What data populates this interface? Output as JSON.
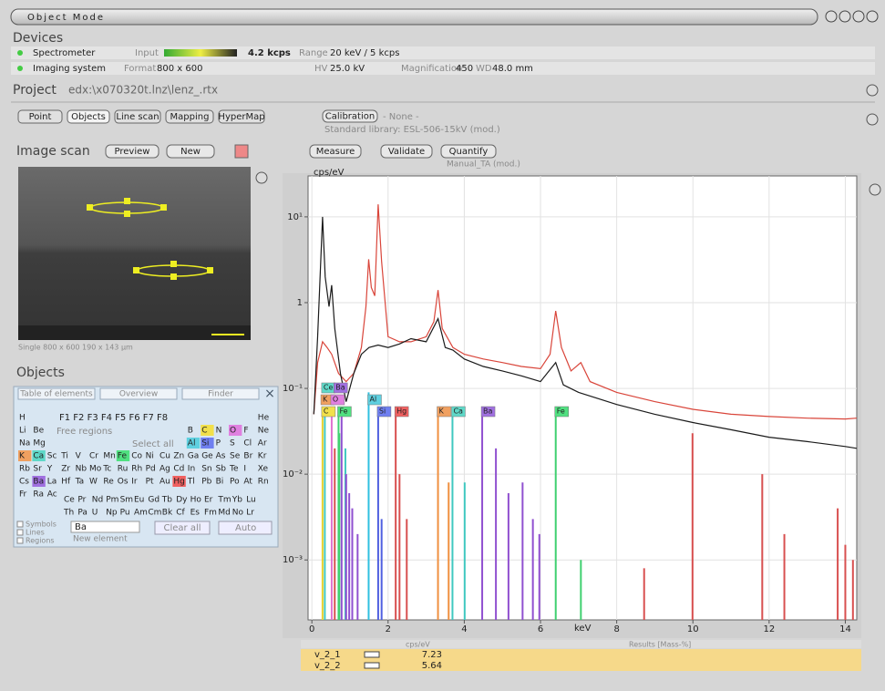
{
  "header": {
    "mode": "Object Mode"
  },
  "devices": {
    "title": "Devices",
    "spectrometer": {
      "name": "Spectrometer",
      "input_label": "Input",
      "rate": "4.2 kcps",
      "range_label": "Range",
      "range": "20 keV / 5 kcps"
    },
    "imaging": {
      "name": "Imaging system",
      "format_label": "Format",
      "format": "800 x 600",
      "hv_label": "HV",
      "hv": "25.0 kV",
      "mag_label": "Magnification",
      "mag": "450",
      "wd_label": "WD",
      "wd": "48.0 mm"
    }
  },
  "project": {
    "label": "Project",
    "path": "edx:\\x070320t.lnz\\lenz_.rtx"
  },
  "toolbar": {
    "tabs": [
      "Point",
      "Objects",
      "Line scan",
      "Mapping",
      "HyperMap"
    ],
    "calibration": "Calibration",
    "calibration_value": "- None -",
    "library": "Standard library: ESL-506-15kV (mod.)"
  },
  "image_scan": {
    "title": "Image scan",
    "buttons": [
      "Preview",
      "New"
    ],
    "caption": "Single  800 x 600  190 x 143 µm"
  },
  "objects": {
    "title": "Objects",
    "tabs": [
      "Table of elements",
      "Overview",
      "Finder"
    ],
    "fkeys": "F1 F2 F3 F4 F5 F6 F7 F8",
    "free_regions": "Free regions",
    "select_all": "Select all",
    "rows": [
      [
        "H",
        null,
        null,
        null,
        null,
        null,
        null,
        null,
        null,
        null,
        null,
        null,
        null,
        null,
        null,
        null,
        null,
        "He"
      ],
      [
        "Li",
        "Be",
        null,
        null,
        null,
        null,
        null,
        null,
        null,
        null,
        null,
        null,
        "B",
        "C",
        "N",
        "O",
        "F",
        "Ne"
      ],
      [
        "Na",
        "Mg",
        null,
        null,
        null,
        null,
        null,
        null,
        null,
        null,
        null,
        null,
        "Al",
        "Si",
        "P",
        "S",
        "Cl",
        "Ar"
      ],
      [
        "K",
        "Ca",
        "Sc",
        "Ti",
        "V",
        "Cr",
        "Mn",
        "Fe",
        "Co",
        "Ni",
        "Cu",
        "Zn",
        "Ga",
        "Ge",
        "As",
        "Se",
        "Br",
        "Kr"
      ],
      [
        "Rb",
        "Sr",
        "Y",
        "Zr",
        "Nb",
        "Mo",
        "Tc",
        "Ru",
        "Rh",
        "Pd",
        "Ag",
        "Cd",
        "In",
        "Sn",
        "Sb",
        "Te",
        "I",
        "Xe"
      ],
      [
        "Cs",
        "Ba",
        "La",
        "Hf",
        "Ta",
        "W",
        "Re",
        "Os",
        "Ir",
        "Pt",
        "Au",
        "Hg",
        "Tl",
        "Pb",
        "Bi",
        "Po",
        "At",
        "Rn"
      ],
      [
        "Fr",
        "Ra",
        "Ac",
        null,
        null,
        null,
        null,
        null,
        null,
        null,
        null,
        null,
        null,
        null,
        null,
        null,
        null,
        null
      ]
    ],
    "lanthanides": [
      "Ce",
      "Pr",
      "Nd",
      "Pm",
      "Sm",
      "Eu",
      "Gd",
      "Tb",
      "Dy",
      "Ho",
      "Er",
      "Tm",
      "Yb",
      "Lu"
    ],
    "actinides": [
      "Th",
      "Pa",
      "U",
      "Np",
      "Pu",
      "Am",
      "Cm",
      "Bk",
      "Cf",
      "Es",
      "Fm",
      "Md",
      "No",
      "Lr"
    ],
    "highlights": {
      "C": "#f2e04a",
      "O": "#e080e0",
      "Al": "#5fd0e0",
      "Si": "#6f7ff0",
      "K": "#f0a060",
      "Ca": "#5fd8c8",
      "Fe": "#50e080",
      "Ba": "#a070e0",
      "Hg": "#f06060"
    },
    "options": [
      "Symbols",
      "Lines",
      "Regions"
    ],
    "input": "Ba",
    "input_hint": "New element",
    "clear": "Clear all",
    "auto": "Auto"
  },
  "spectrum_toolbar": {
    "buttons": [
      "Measure",
      "Validate",
      "Quantify"
    ],
    "method": "Manual_TA (mod.)"
  },
  "chart_data": {
    "type": "line",
    "y_label": "cps/eV",
    "x_label": "keV",
    "log_y": true,
    "grid": true,
    "xlim": [
      -0.1,
      14.3
    ],
    "xticks": [
      0,
      2,
      4,
      6,
      8,
      10,
      12,
      14
    ],
    "ylim": [
      0.0002,
      30
    ],
    "yticks": [
      {
        "value": 10,
        "label": "10¹"
      },
      1,
      {
        "value": 0.1,
        "label": "10⁻¹"
      },
      {
        "value": 0.01,
        "label": "10⁻²"
      },
      {
        "value": 0.001,
        "label": "10⁻³"
      }
    ],
    "series": [
      {
        "name": "v_2_1",
        "color": "#d9453a",
        "x": [
          0.05,
          0.15,
          0.28,
          0.4,
          0.52,
          0.7,
          0.9,
          1.1,
          1.3,
          1.42,
          1.49,
          1.56,
          1.65,
          1.74,
          1.83,
          2.0,
          2.3,
          2.6,
          3.0,
          3.2,
          3.31,
          3.42,
          3.7,
          4.0,
          4.5,
          5.0,
          5.5,
          6.0,
          6.25,
          6.4,
          6.55,
          6.8,
          7.06,
          7.3,
          8,
          9,
          10,
          11,
          12,
          13,
          14,
          14.3
        ],
        "values": [
          0.05,
          0.2,
          0.35,
          0.3,
          0.25,
          0.15,
          0.12,
          0.15,
          0.3,
          0.9,
          3.2,
          1.5,
          1.2,
          14,
          3,
          0.4,
          0.35,
          0.35,
          0.4,
          0.6,
          1.4,
          0.5,
          0.3,
          0.25,
          0.22,
          0.2,
          0.18,
          0.17,
          0.25,
          0.8,
          0.3,
          0.16,
          0.2,
          0.12,
          0.09,
          0.07,
          0.057,
          0.05,
          0.047,
          0.045,
          0.044,
          0.045
        ]
      },
      {
        "name": "v_2_2",
        "color": "#1a1a1a",
        "x": [
          0.05,
          0.15,
          0.28,
          0.35,
          0.45,
          0.52,
          0.6,
          0.75,
          0.9,
          1.1,
          1.3,
          1.5,
          1.74,
          2.0,
          2.3,
          2.6,
          3.0,
          3.31,
          3.5,
          3.7,
          4.0,
          4.5,
          5.0,
          5.5,
          6.0,
          6.4,
          6.6,
          7.0,
          8,
          9,
          10,
          11,
          12,
          13,
          14,
          14.3
        ],
        "values": [
          0.05,
          0.4,
          10,
          2,
          0.9,
          1.6,
          0.5,
          0.15,
          0.07,
          0.15,
          0.25,
          0.3,
          0.32,
          0.3,
          0.33,
          0.38,
          0.35,
          0.65,
          0.3,
          0.28,
          0.22,
          0.18,
          0.16,
          0.14,
          0.12,
          0.2,
          0.11,
          0.09,
          0.065,
          0.05,
          0.04,
          0.033,
          0.027,
          0.024,
          0.021,
          0.02
        ]
      }
    ],
    "markers": [
      {
        "label": "Ce",
        "keV": 0.28,
        "row": 0,
        "color": "#5fd8c8"
      },
      {
        "label": "Ba",
        "keV": 0.6,
        "row": 0,
        "color": "#a070e0"
      },
      {
        "label": "K",
        "keV": 0.26,
        "row": 1,
        "color": "#f0a060"
      },
      {
        "label": "O",
        "keV": 0.52,
        "row": 1,
        "color": "#e080e0"
      },
      {
        "label": "Al",
        "keV": 1.49,
        "row": 1,
        "color": "#5fd0e0"
      },
      {
        "label": "C",
        "keV": 0.28,
        "row": 2,
        "color": "#f2e04a"
      },
      {
        "label": "Fe",
        "keV": 0.7,
        "row": 2,
        "color": "#50e080"
      },
      {
        "label": "Si",
        "keV": 1.74,
        "row": 2,
        "color": "#6f7ff0"
      },
      {
        "label": "Hg",
        "keV": 2.2,
        "row": 2,
        "color": "#f06060"
      },
      {
        "label": "K",
        "keV": 3.31,
        "row": 2,
        "color": "#f0a060"
      },
      {
        "label": "Ca",
        "keV": 3.69,
        "row": 2,
        "color": "#5fd8c8"
      },
      {
        "label": "Ba",
        "keV": 4.47,
        "row": 2,
        "color": "#a070e0"
      },
      {
        "label": "Fe",
        "keV": 6.4,
        "row": 2,
        "color": "#50e080"
      }
    ],
    "line_groups": [
      {
        "color": "#e8d030",
        "lines": [
          [
            0.28,
            0.05
          ]
        ]
      },
      {
        "color": "#40c8c0",
        "lines": [
          [
            0.34,
            0.05
          ],
          [
            0.88,
            0.02
          ],
          [
            3.69,
            0.05
          ],
          [
            4.01,
            0.008
          ]
        ]
      },
      {
        "color": "#40d070",
        "lines": [
          [
            0.7,
            0.05
          ],
          [
            0.72,
            0.03
          ],
          [
            6.4,
            0.05
          ],
          [
            7.06,
            0.001
          ]
        ]
      },
      {
        "color": "#9050d0",
        "lines": [
          [
            0.78,
            0.05
          ],
          [
            0.9,
            0.01
          ],
          [
            0.98,
            0.006
          ],
          [
            1.06,
            0.004
          ],
          [
            1.2,
            0.002
          ],
          [
            4.47,
            0.05
          ],
          [
            4.83,
            0.02
          ],
          [
            5.16,
            0.006
          ],
          [
            5.53,
            0.008
          ],
          [
            5.8,
            0.003
          ],
          [
            5.97,
            0.002
          ]
        ]
      },
      {
        "color": "#e070d0",
        "lines": [
          [
            0.52,
            0.05
          ]
        ]
      },
      {
        "color": "#d85050",
        "lines": [
          [
            0.6,
            0.02
          ],
          [
            2.2,
            0.05
          ],
          [
            2.3,
            0.01
          ],
          [
            2.49,
            0.003
          ],
          [
            8.72,
            0.0008
          ],
          [
            9.99,
            0.03
          ],
          [
            11.82,
            0.01
          ],
          [
            12.4,
            0.002
          ],
          [
            13.8,
            0.004
          ],
          [
            14.0,
            0.0015
          ],
          [
            14.2,
            0.001
          ]
        ]
      },
      {
        "color": "#30c0e0",
        "lines": [
          [
            1.49,
            0.09
          ]
        ]
      },
      {
        "color": "#5060e0",
        "lines": [
          [
            1.74,
            0.05
          ],
          [
            1.83,
            0.003
          ]
        ]
      },
      {
        "color": "#f09040",
        "lines": [
          [
            3.31,
            0.05
          ],
          [
            3.59,
            0.008
          ]
        ]
      }
    ]
  },
  "results": {
    "headers": [
      "cps/eV",
      "Results [Mass-%]"
    ],
    "values": [
      7.23,
      5.64
    ]
  }
}
